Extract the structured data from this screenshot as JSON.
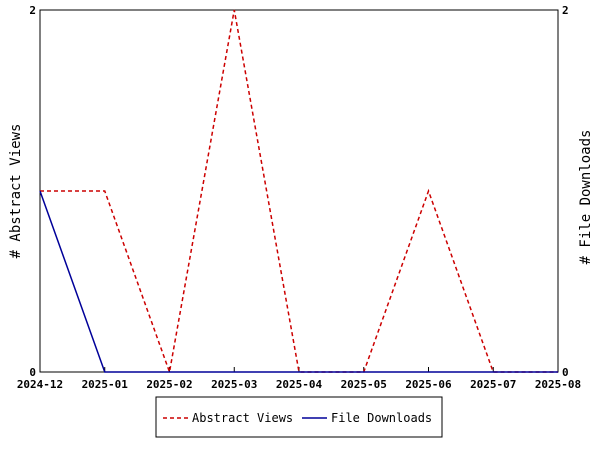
{
  "chart_data": {
    "type": "line",
    "x": [
      "2024-12",
      "2025-01",
      "2025-02",
      "2025-03",
      "2025-04",
      "2025-05",
      "2025-06",
      "2025-07",
      "2025-08"
    ],
    "ylabel": "# Abstract Views",
    "y2label": "# File Downloads",
    "ylim": [
      0,
      2
    ],
    "y2lim": [
      0,
      2
    ],
    "yticks": [
      "0",
      "2"
    ],
    "y2ticks": [
      "0",
      "2"
    ],
    "grid": false,
    "legend_position": "bottom",
    "series": [
      {
        "name": "Abstract Views",
        "axis": "left",
        "color": "#cc0000",
        "dash": "dashed",
        "values": [
          1,
          1,
          0,
          2,
          0,
          0,
          1,
          0,
          0
        ]
      },
      {
        "name": "File Downloads",
        "axis": "right",
        "color": "#000099",
        "dash": "solid",
        "values": [
          1,
          0,
          0,
          0,
          0,
          0,
          0,
          0,
          0
        ]
      }
    ]
  }
}
